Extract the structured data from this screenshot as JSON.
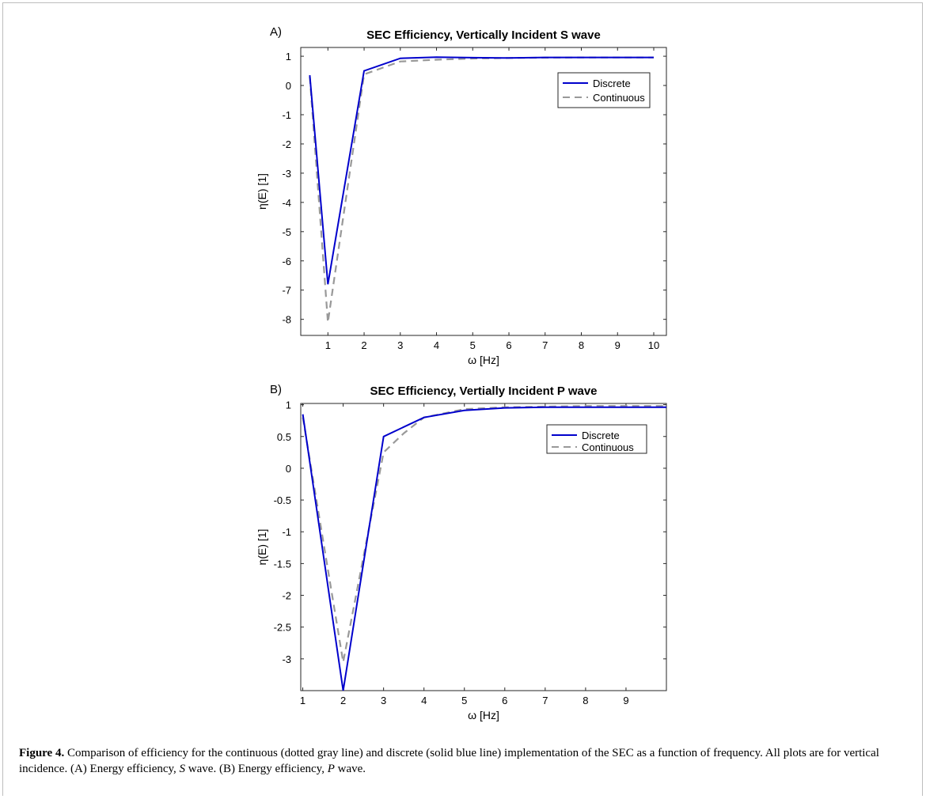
{
  "chart_data": [
    {
      "type": "line",
      "panel_label": "A)",
      "title": "SEC Efficiency, Vertically Incident S wave",
      "xlabel": "ω [Hz]",
      "ylabel": "η(E) [1]",
      "xlim": [
        0.25,
        10.35
      ],
      "ylim": [
        -8.55,
        1.3
      ],
      "xticks": [
        1,
        2,
        3,
        4,
        5,
        6,
        7,
        8,
        9,
        10
      ],
      "xtick_labels": [
        "1",
        "2",
        "3",
        "4",
        "5",
        "6",
        "7",
        "8",
        "9",
        "10"
      ],
      "yticks": [
        1,
        0,
        -1,
        -2,
        -3,
        -4,
        -5,
        -6,
        -7,
        -8
      ],
      "ytick_labels": [
        "1",
        "0",
        "-1",
        "-2",
        "-3",
        "-4",
        "-5",
        "-6",
        "-7",
        "-8"
      ],
      "grid": false,
      "legend": "top-right",
      "series": [
        {
          "name": "Discrete",
          "color": "#0000cc",
          "style": "solid",
          "x": [
            0.5,
            1,
            2,
            3,
            4,
            5,
            6,
            7,
            8,
            9,
            10
          ],
          "y": [
            0.35,
            -6.8,
            0.5,
            0.93,
            0.97,
            0.95,
            0.94,
            0.96,
            0.96,
            0.96,
            0.96
          ]
        },
        {
          "name": "Continuous",
          "color": "#999999",
          "style": "dashed",
          "x": [
            0.5,
            1,
            2,
            3,
            4,
            5,
            6,
            7,
            8,
            9,
            10
          ],
          "y": [
            0.3,
            -8.1,
            0.38,
            0.82,
            0.88,
            0.92,
            0.94,
            0.95,
            0.96,
            0.96,
            0.96
          ]
        }
      ]
    },
    {
      "type": "line",
      "panel_label": "B)",
      "title": "SEC Efficiency, Vertially Incident P wave",
      "xlabel": "ω [Hz]",
      "ylabel": "η(E) [1]",
      "xlim": [
        0.95,
        10.0
      ],
      "ylim": [
        -3.5,
        1.02
      ],
      "xticks": [
        1,
        2,
        3,
        4,
        5,
        6,
        7,
        8,
        9
      ],
      "xtick_labels": [
        "1",
        "2",
        "3",
        "4",
        "5",
        "6",
        "7",
        "8",
        "9"
      ],
      "yticks": [
        1,
        0.5,
        0,
        -0.5,
        -1,
        -1.5,
        -2,
        -2.5,
        -3
      ],
      "ytick_labels": [
        "1",
        "0.5",
        "0",
        "-0.5",
        "-1",
        "-1.5",
        "-2",
        "-2.5",
        "-3"
      ],
      "grid": false,
      "legend": "top-right",
      "series": [
        {
          "name": "Discrete",
          "color": "#0000cc",
          "style": "solid",
          "x": [
            1,
            2,
            3,
            4,
            5,
            6,
            7,
            8,
            9,
            10
          ],
          "y": [
            0.85,
            -3.5,
            0.5,
            0.8,
            0.91,
            0.95,
            0.96,
            0.96,
            0.96,
            0.96
          ]
        },
        {
          "name": "Continuous",
          "color": "#999999",
          "style": "dashed",
          "x": [
            1,
            2,
            3,
            3.5,
            4,
            5,
            6,
            7,
            8,
            9,
            10
          ],
          "y": [
            0.8,
            -3.05,
            0.25,
            0.55,
            0.8,
            0.93,
            0.96,
            0.97,
            0.98,
            0.98,
            0.98
          ]
        }
      ]
    }
  ],
  "caption": {
    "label": "Figure 4.",
    "text": " Comparison of efficiency for the continuous (dotted gray line) and discrete (solid blue line) implementation of the SEC as a function of frequency. All plots are for vertical incidence. (A) Energy efficiency, ",
    "s_italic": "S",
    "text_mid": " wave. (B) Energy efficiency, ",
    "p_italic": "P",
    "text_end": " wave."
  }
}
